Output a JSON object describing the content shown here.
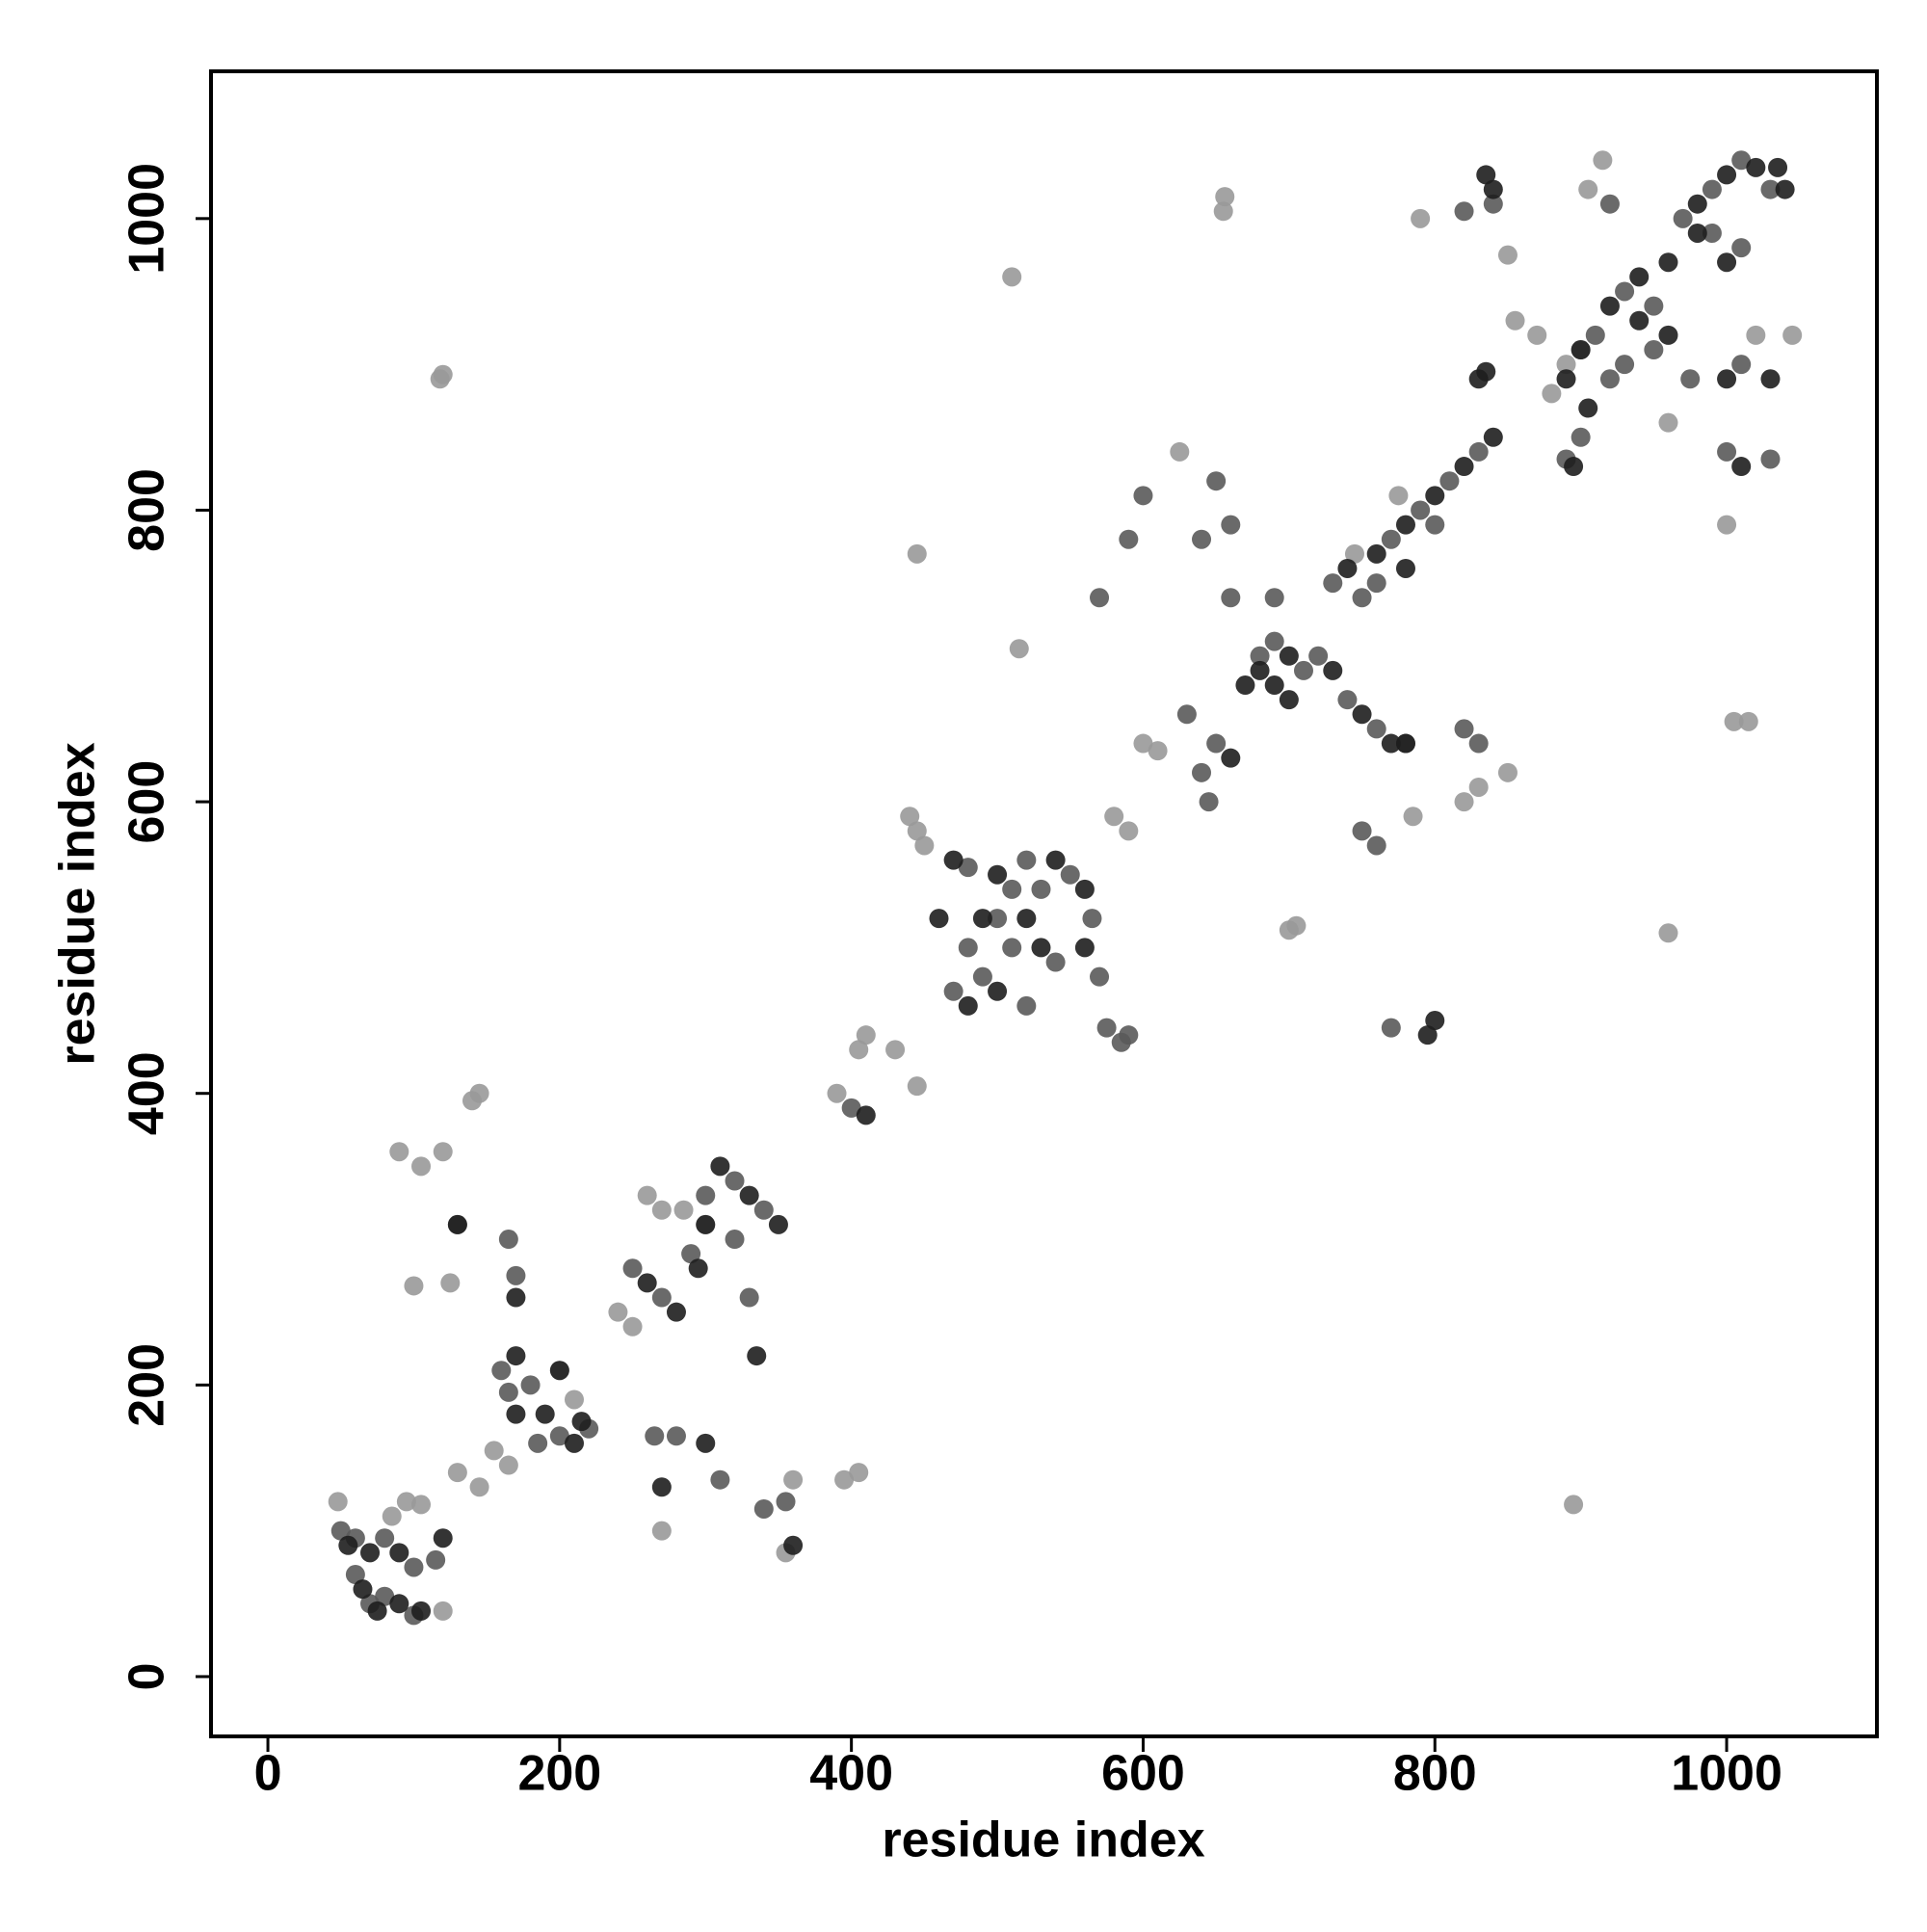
{
  "chart_data": {
    "type": "scatter",
    "xlabel": "residue index",
    "ylabel": "residue index",
    "xlim": [
      -39,
      1103
    ],
    "ylim": [
      -41,
      1101
    ],
    "xticks": [
      0,
      200,
      400,
      600,
      800,
      1000
    ],
    "yticks": [
      0,
      200,
      400,
      600,
      800,
      1000
    ],
    "series": [
      {
        "color": "#999999",
        "x": [
          48,
          120,
          85,
          95,
          105,
          118,
          120,
          90,
          105,
          120,
          145,
          140,
          100,
          125,
          130,
          145,
          155,
          165,
          200,
          210,
          240,
          250,
          260,
          270,
          270,
          300,
          285,
          355,
          360,
          395,
          405,
          390,
          405,
          410,
          430,
          445,
          440,
          445,
          450,
          510,
          515,
          445,
          705,
          700,
          895,
          960,
          580,
          590,
          600,
          610,
          625,
          655,
          656,
          785,
          820,
          830,
          850,
          790,
          850,
          855,
          870,
          880,
          890,
          900,
          915,
          905,
          960,
          1045,
          1020,
          1005,
          1015,
          1000,
          775,
          745
        ],
        "values": [
          120,
          45,
          110,
          120,
          118,
          890,
          893,
          360,
          350,
          360,
          400,
          395,
          268,
          270,
          140,
          130,
          155,
          145,
          210,
          190,
          250,
          240,
          330,
          320,
          100,
          310,
          320,
          85,
          135,
          135,
          140,
          400,
          430,
          440,
          430,
          405,
          590,
          580,
          570,
          960,
          705,
          770,
          515,
          512,
          118,
          510,
          590,
          580,
          640,
          635,
          840,
          1005,
          1015,
          590,
          600,
          610,
          620,
          1000,
          975,
          930,
          920,
          880,
          900,
          910,
          1040,
          1020,
          860,
          920,
          920,
          655,
          655,
          790,
          810,
          770
        ]
      },
      {
        "color": "#5a5a5a",
        "x": [
          50,
          60,
          70,
          80,
          100,
          115,
          100,
          80,
          60,
          160,
          180,
          200,
          220,
          165,
          185,
          130,
          165,
          170,
          250,
          270,
          290,
          300,
          320,
          340,
          320,
          330,
          265,
          280,
          310,
          340,
          355,
          400,
          470,
          490,
          510,
          530,
          520,
          480,
          550,
          565,
          570,
          540,
          510,
          480,
          500,
          520,
          575,
          590,
          585,
          600,
          630,
          650,
          640,
          645,
          690,
          710,
          680,
          720,
          740,
          760,
          780,
          750,
          760,
          830,
          820,
          770,
          570,
          590,
          640,
          660,
          690,
          650,
          660,
          730,
          750,
          770,
          790,
          810,
          830,
          800,
          760,
          820,
          840,
          910,
          930,
          950,
          950,
          930,
          920,
          900,
          970,
          990,
          1010,
          1030,
          1010,
          990,
          920,
          975,
          1010,
          1000,
          1030,
          890
        ],
        "values": [
          100,
          70,
          50,
          55,
          42,
          80,
          75,
          95,
          95,
          210,
          200,
          165,
          170,
          195,
          160,
          310,
          300,
          275,
          280,
          260,
          290,
          330,
          340,
          320,
          300,
          260,
          165,
          165,
          135,
          115,
          120,
          390,
          470,
          480,
          500,
          540,
          560,
          555,
          550,
          520,
          480,
          490,
          540,
          500,
          520,
          460,
          445,
          440,
          435,
          810,
          660,
          640,
          620,
          600,
          710,
          690,
          700,
          700,
          670,
          650,
          640,
          580,
          570,
          640,
          650,
          445,
          740,
          780,
          780,
          740,
          740,
          820,
          790,
          750,
          740,
          780,
          800,
          820,
          840,
          790,
          750,
          1005,
          1010,
          920,
          950,
          940,
          910,
          900,
          890,
          850,
          1000,
          1020,
          1040,
          1020,
          980,
          990,
          1010,
          890,
          900,
          840,
          835,
          835
        ]
      },
      {
        "color": "#1e1e1e",
        "x": [
          55,
          65,
          75,
          90,
          105,
          120,
          90,
          70,
          170,
          190,
          210,
          170,
          200,
          215,
          130,
          170,
          260,
          280,
          295,
          310,
          330,
          350,
          300,
          335,
          300,
          270,
          360,
          410,
          480,
          500,
          520,
          540,
          500,
          470,
          560,
          560,
          530,
          490,
          460,
          660,
          670,
          680,
          700,
          690,
          700,
          730,
          750,
          770,
          780,
          800,
          795,
          740,
          760,
          780,
          800,
          820,
          840,
          780,
          830,
          835,
          895,
          835,
          840,
          890,
          900,
          920,
          940,
          960,
          940,
          905,
          960,
          980,
          1000,
          1020,
          1035,
          1000,
          980,
          1000,
          1030,
          1010,
          1040
        ],
        "values": [
          90,
          60,
          45,
          50,
          45,
          95,
          85,
          85,
          220,
          180,
          160,
          180,
          210,
          175,
          310,
          260,
          270,
          250,
          280,
          350,
          330,
          310,
          310,
          220,
          160,
          130,
          90,
          385,
          460,
          470,
          520,
          560,
          550,
          560,
          540,
          500,
          500,
          520,
          520,
          630,
          680,
          690,
          700,
          680,
          670,
          690,
          660,
          640,
          640,
          450,
          440,
          760,
          770,
          790,
          810,
          830,
          850,
          760,
          890,
          1030,
          830,
          895,
          1020,
          890,
          910,
          940,
          960,
          920,
          930,
          870,
          970,
          1010,
          1030,
          1035,
          1035,
          970,
          990,
          890,
          890,
          830,
          1020
        ]
      }
    ]
  }
}
